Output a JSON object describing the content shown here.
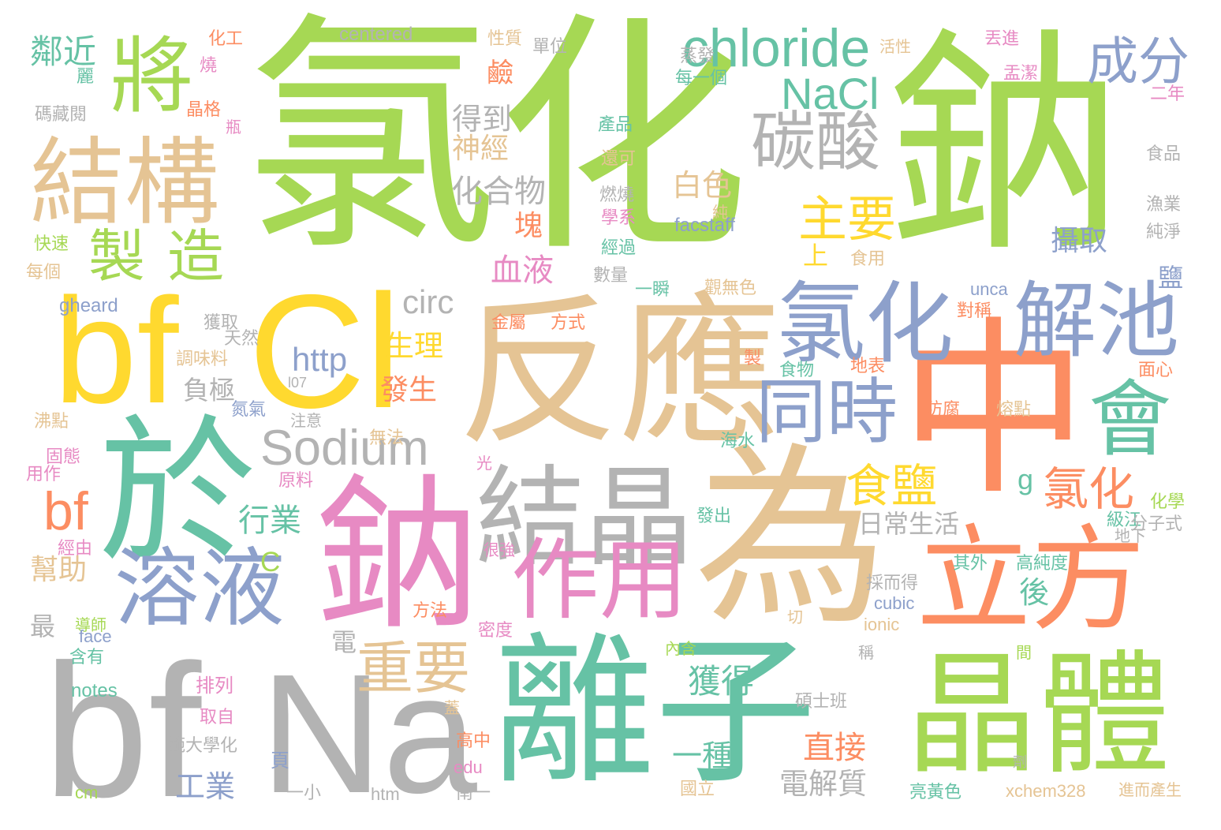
{
  "words": [
    {
      "text": "氯化",
      "color": "#a6d854"
    },
    {
      "text": "鈉",
      "color": "#a6d854"
    },
    {
      "text": "反應",
      "color": "#e5c494"
    },
    {
      "text": "中",
      "color": "#fc8d62"
    },
    {
      "text": "為",
      "color": "#e5c494"
    },
    {
      "text": "鈉",
      "color": "#e78ac3"
    },
    {
      "text": "離子",
      "color": "#66c2a5"
    },
    {
      "text": "於",
      "color": "#66c2a5"
    },
    {
      "text": "Cl",
      "color": "#ffd92f"
    },
    {
      "text": "bf",
      "color": "#ffd92f"
    },
    {
      "text": "bf",
      "color": "#b3b3b3"
    },
    {
      "text": "Na",
      "color": "#b3b3b3"
    },
    {
      "text": "結構",
      "color": "#e5c494"
    },
    {
      "text": "將",
      "color": "#a6d854"
    },
    {
      "text": "製造",
      "color": "#a6d854"
    },
    {
      "text": "溶液",
      "color": "#8da0cb"
    },
    {
      "text": "結晶",
      "color": "#b3b3b3"
    },
    {
      "text": "作用",
      "color": "#e78ac3"
    },
    {
      "text": "立方",
      "color": "#fc8d62"
    },
    {
      "text": "晶體",
      "color": "#a6d854"
    },
    {
      "text": "會",
      "color": "#66c2a5"
    },
    {
      "text": "氯化",
      "color": "#8da0cb"
    },
    {
      "text": "解池",
      "color": "#8da0cb"
    },
    {
      "text": "同時",
      "color": "#8da0cb"
    },
    {
      "text": "碳酸",
      "color": "#b3b3b3"
    },
    {
      "text": "chloride",
      "color": "#66c2a5"
    },
    {
      "text": "NaCl",
      "color": "#66c2a5"
    },
    {
      "text": "成分",
      "color": "#8da0cb"
    },
    {
      "text": "主要",
      "color": "#ffd92f"
    },
    {
      "text": "Sodium",
      "color": "#b3b3b3"
    },
    {
      "text": "bf",
      "color": "#fc8d62"
    },
    {
      "text": "重要",
      "color": "#e5c494"
    },
    {
      "text": "食鹽",
      "color": "#ffd92f"
    },
    {
      "text": "氯化",
      "color": "#fc8d62"
    },
    {
      "text": "行業",
      "color": "#66c2a5"
    },
    {
      "text": "幫助",
      "color": "#e5c494"
    },
    {
      "text": "鄰近",
      "color": "#66c2a5"
    },
    {
      "text": "獲得",
      "color": "#66c2a5"
    },
    {
      "text": "一種",
      "color": "#66c2a5"
    },
    {
      "text": "直接",
      "color": "#fc8d62"
    },
    {
      "text": "電解質",
      "color": "#b3b3b3"
    },
    {
      "text": "得到",
      "color": "#b3b3b3"
    },
    {
      "text": "神經",
      "color": "#e5c494"
    },
    {
      "text": "化合物",
      "color": "#b3b3b3"
    },
    {
      "text": "白色",
      "color": "#e5c494"
    },
    {
      "text": "血液",
      "color": "#e78ac3"
    },
    {
      "text": "塊",
      "color": "#fc8d62"
    },
    {
      "text": "生理",
      "color": "#ffd92f"
    },
    {
      "text": "發生",
      "color": "#fc8d62"
    },
    {
      "text": "攝取",
      "color": "#8da0cb"
    },
    {
      "text": "負極",
      "color": "#b3b3b3"
    },
    {
      "text": "工業",
      "color": "#8da0cb"
    },
    {
      "text": "日常生活",
      "color": "#b3b3b3"
    },
    {
      "text": "後",
      "color": "#66c2a5"
    },
    {
      "text": "最",
      "color": "#b3b3b3"
    },
    {
      "text": "上",
      "color": "#ffd92f"
    },
    {
      "text": "鹽",
      "color": "#8da0cb"
    },
    {
      "text": "circ",
      "color": "#b3b3b3"
    },
    {
      "text": "http",
      "color": "#8da0cb"
    },
    {
      "text": "鹼",
      "color": "#fc8d62"
    },
    {
      "text": "電",
      "color": "#b3b3b3"
    },
    {
      "text": "C",
      "color": "#a6d854"
    },
    {
      "text": "g",
      "color": "#66c2a5"
    },
    {
      "text": "製",
      "color": "#fc8d62"
    },
    {
      "text": "化工",
      "color": "#fc8d62"
    },
    {
      "text": "centered",
      "color": "#b3b3b3"
    },
    {
      "text": "性質",
      "color": "#e5c494"
    },
    {
      "text": "單位",
      "color": "#b3b3b3"
    },
    {
      "text": "蒸發",
      "color": "#b3b3b3"
    },
    {
      "text": "活性",
      "color": "#e5c494"
    },
    {
      "text": "丟進",
      "color": "#e78ac3"
    },
    {
      "text": "盂潔",
      "color": "#e78ac3"
    },
    {
      "text": "二年",
      "color": "#e78ac3"
    },
    {
      "text": "每一個",
      "color": "#66c2a5"
    },
    {
      "text": "產品",
      "color": "#66c2a5"
    },
    {
      "text": "還可",
      "color": "#e5c494"
    },
    {
      "text": "燃燒",
      "color": "#b3b3b3"
    },
    {
      "text": "學系",
      "color": "#e78ac3"
    },
    {
      "text": "經過",
      "color": "#66c2a5"
    },
    {
      "text": "純",
      "color": "#e5c494"
    },
    {
      "text": "facstaff",
      "color": "#8da0cb"
    },
    {
      "text": "數量",
      "color": "#b3b3b3"
    },
    {
      "text": "一瞬",
      "color": "#66c2a5"
    },
    {
      "text": "觀無色",
      "color": "#e5c494"
    },
    {
      "text": "食用",
      "color": "#e5c494"
    },
    {
      "text": "食品",
      "color": "#b3b3b3"
    },
    {
      "text": "漁業",
      "color": "#b3b3b3"
    },
    {
      "text": "純淨",
      "color": "#b3b3b3"
    },
    {
      "text": "麗",
      "color": "#66c2a5"
    },
    {
      "text": "燒",
      "color": "#e78ac3"
    },
    {
      "text": "晶格",
      "color": "#fc8d62"
    },
    {
      "text": "碼藏閱",
      "color": "#b3b3b3"
    },
    {
      "text": "瓶",
      "color": "#e78ac3"
    },
    {
      "text": "快速",
      "color": "#a6d854"
    },
    {
      "text": "每個",
      "color": "#e5c494"
    },
    {
      "text": "gheard",
      "color": "#8da0cb"
    },
    {
      "text": "獲取",
      "color": "#b3b3b3"
    },
    {
      "text": "天然",
      "color": "#b3b3b3"
    },
    {
      "text": "調味料",
      "color": "#e5c494"
    },
    {
      "text": "l07",
      "color": "#b3b3b3"
    },
    {
      "text": "氮氣",
      "color": "#8da0cb"
    },
    {
      "text": "注意",
      "color": "#b3b3b3"
    },
    {
      "text": "沸點",
      "color": "#e5c494"
    },
    {
      "text": "固態",
      "color": "#e78ac3"
    },
    {
      "text": "用作",
      "color": "#e78ac3"
    },
    {
      "text": "原料",
      "color": "#e78ac3"
    },
    {
      "text": "經由",
      "color": "#e78ac3"
    },
    {
      "text": "導師",
      "color": "#a6d854"
    },
    {
      "text": "face",
      "color": "#8da0cb"
    },
    {
      "text": "含有",
      "color": "#66c2a5"
    },
    {
      "text": "排列",
      "color": "#e78ac3"
    },
    {
      "text": "notes",
      "color": "#66c2a5"
    },
    {
      "text": "取自",
      "color": "#e78ac3"
    },
    {
      "text": "範大學化",
      "color": "#b3b3b3"
    },
    {
      "text": "頁",
      "color": "#8da0cb"
    },
    {
      "text": "一小",
      "color": "#b3b3b3"
    },
    {
      "text": "cm",
      "color": "#a6d854"
    },
    {
      "text": "htm",
      "color": "#b3b3b3"
    },
    {
      "text": "無法",
      "color": "#e5c494"
    },
    {
      "text": "光",
      "color": "#e78ac3"
    },
    {
      "text": "很強",
      "color": "#e78ac3"
    },
    {
      "text": "方法",
      "color": "#fc8d62"
    },
    {
      "text": "方式",
      "color": "#fc8d62"
    },
    {
      "text": "金屬",
      "color": "#fc8d62"
    },
    {
      "text": "密度",
      "color": "#e78ac3"
    },
    {
      "text": "蓋",
      "color": "#e5c494"
    },
    {
      "text": "高中",
      "color": "#fc8d62"
    },
    {
      "text": "edu",
      "color": "#e78ac3"
    },
    {
      "text": "南一",
      "color": "#b3b3b3"
    },
    {
      "text": "國立",
      "color": "#e5c494"
    },
    {
      "text": "海水",
      "color": "#66c2a5"
    },
    {
      "text": "發出",
      "color": "#66c2a5"
    },
    {
      "text": "內含",
      "color": "#a6d854"
    },
    {
      "text": "切",
      "color": "#e5c494"
    },
    {
      "text": "碩士班",
      "color": "#b3b3b3"
    },
    {
      "text": "稱",
      "color": "#b3b3b3"
    },
    {
      "text": "cubic",
      "color": "#8da0cb"
    },
    {
      "text": "ionic",
      "color": "#e5c494"
    },
    {
      "text": "採而得",
      "color": "#b3b3b3"
    },
    {
      "text": "其外",
      "color": "#66c2a5"
    },
    {
      "text": "高純度",
      "color": "#66c2a5"
    },
    {
      "text": "間",
      "color": "#a6d854"
    },
    {
      "text": "劑",
      "color": "#b3b3b3"
    },
    {
      "text": "亮黃色",
      "color": "#66c2a5"
    },
    {
      "text": "xchem328",
      "color": "#e5c494"
    },
    {
      "text": "進而產生",
      "color": "#e5c494"
    },
    {
      "text": "級江",
      "color": "#66c2a5"
    },
    {
      "text": "化學",
      "color": "#a6d854"
    },
    {
      "text": "分子式",
      "color": "#b3b3b3"
    },
    {
      "text": "地下",
      "color": "#b3b3b3"
    },
    {
      "text": "防腐",
      "color": "#fc8d62"
    },
    {
      "text": "熔點",
      "color": "#e5c494"
    },
    {
      "text": "面心",
      "color": "#fc8d62"
    },
    {
      "text": "地表",
      "color": "#fc8d62"
    },
    {
      "text": "對稱",
      "color": "#fc8d62"
    },
    {
      "text": "unca",
      "color": "#8da0cb"
    },
    {
      "text": "食物",
      "color": "#66c2a5"
    }
  ]
}
